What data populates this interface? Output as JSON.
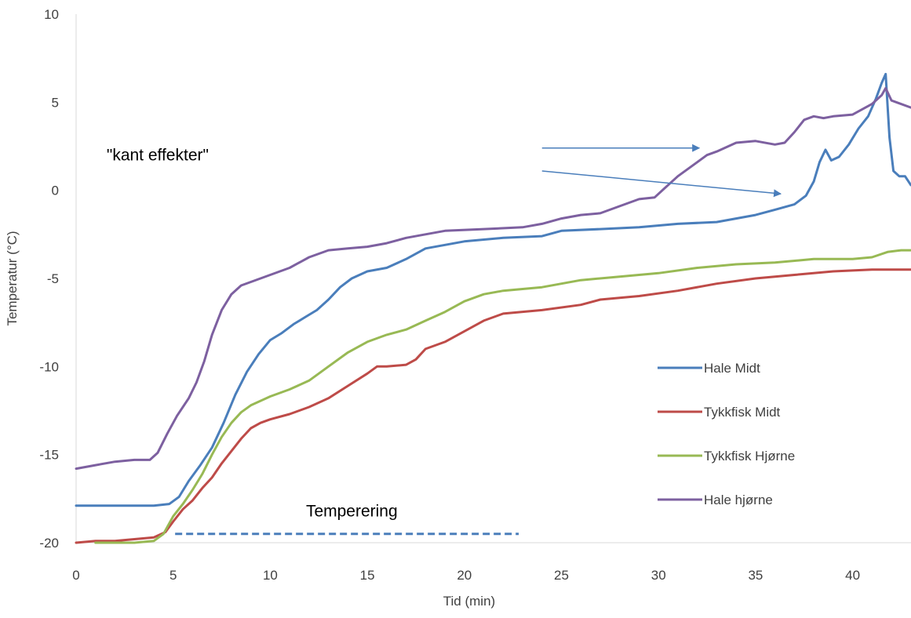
{
  "chart_data": {
    "type": "line",
    "title": "",
    "xlabel": "Tid (min)",
    "ylabel": "Temperatur (°C)",
    "xlim": [
      0,
      43
    ],
    "ylim": [
      -20,
      10
    ],
    "x_ticks": [
      0,
      5,
      10,
      15,
      20,
      25,
      30,
      35,
      40
    ],
    "y_ticks": [
      10,
      5,
      0,
      -5,
      -10,
      -15,
      -20
    ],
    "x_tick_labels": [
      "0",
      "5",
      "10",
      "15",
      "20",
      "25",
      "30",
      "35",
      "40"
    ],
    "y_tick_labels": [
      "10",
      "5",
      "0",
      "-5",
      "-10",
      "-15",
      "-20"
    ],
    "grid": false,
    "legend_position": "right",
    "series": [
      {
        "name": "Hale Midt",
        "color": "#4a7ebb",
        "points": [
          [
            0,
            -17.9
          ],
          [
            2,
            -17.9
          ],
          [
            4,
            -17.9
          ],
          [
            4.8,
            -17.8
          ],
          [
            5.3,
            -17.4
          ],
          [
            5.8,
            -16.5
          ],
          [
            6.4,
            -15.6
          ],
          [
            7,
            -14.6
          ],
          [
            7.6,
            -13.2
          ],
          [
            8.2,
            -11.6
          ],
          [
            8.8,
            -10.3
          ],
          [
            9.4,
            -9.3
          ],
          [
            10,
            -8.5
          ],
          [
            10.6,
            -8.1
          ],
          [
            11.2,
            -7.6
          ],
          [
            11.8,
            -7.2
          ],
          [
            12.4,
            -6.8
          ],
          [
            13,
            -6.2
          ],
          [
            13.6,
            -5.5
          ],
          [
            14.2,
            -5.0
          ],
          [
            15,
            -4.6
          ],
          [
            16,
            -4.4
          ],
          [
            17,
            -3.9
          ],
          [
            18,
            -3.3
          ],
          [
            19,
            -3.1
          ],
          [
            20,
            -2.9
          ],
          [
            22,
            -2.7
          ],
          [
            24,
            -2.6
          ],
          [
            25,
            -2.3
          ],
          [
            27,
            -2.2
          ],
          [
            29,
            -2.1
          ],
          [
            31,
            -1.9
          ],
          [
            33,
            -1.8
          ],
          [
            35,
            -1.4
          ],
          [
            36,
            -1.1
          ],
          [
            37,
            -0.8
          ],
          [
            37.6,
            -0.3
          ],
          [
            38,
            0.5
          ],
          [
            38.3,
            1.6
          ],
          [
            38.6,
            2.3
          ],
          [
            38.9,
            1.7
          ],
          [
            39.3,
            1.9
          ],
          [
            39.8,
            2.6
          ],
          [
            40.3,
            3.5
          ],
          [
            40.8,
            4.2
          ],
          [
            41.2,
            5.2
          ],
          [
            41.5,
            6.1
          ],
          [
            41.7,
            6.6
          ],
          [
            41.9,
            3.0
          ],
          [
            42.1,
            1.1
          ],
          [
            42.4,
            0.8
          ],
          [
            42.7,
            0.8
          ],
          [
            43,
            0.3
          ]
        ]
      },
      {
        "name": "Tykkfisk Midt",
        "color": "#be4b48",
        "points": [
          [
            0,
            -20.0
          ],
          [
            1,
            -19.9
          ],
          [
            2,
            -19.9
          ],
          [
            3,
            -19.8
          ],
          [
            4,
            -19.7
          ],
          [
            4.6,
            -19.4
          ],
          [
            5,
            -18.8
          ],
          [
            5.5,
            -18.1
          ],
          [
            6,
            -17.6
          ],
          [
            6.5,
            -16.9
          ],
          [
            7,
            -16.3
          ],
          [
            7.5,
            -15.5
          ],
          [
            8,
            -14.8
          ],
          [
            8.5,
            -14.1
          ],
          [
            9,
            -13.5
          ],
          [
            9.5,
            -13.2
          ],
          [
            10,
            -13.0
          ],
          [
            11,
            -12.7
          ],
          [
            12,
            -12.3
          ],
          [
            13,
            -11.8
          ],
          [
            14,
            -11.1
          ],
          [
            15,
            -10.4
          ],
          [
            15.5,
            -10.0
          ],
          [
            16,
            -10.0
          ],
          [
            17,
            -9.9
          ],
          [
            17.5,
            -9.6
          ],
          [
            18,
            -9.0
          ],
          [
            19,
            -8.6
          ],
          [
            20,
            -8.0
          ],
          [
            21,
            -7.4
          ],
          [
            22,
            -7.0
          ],
          [
            24,
            -6.8
          ],
          [
            26,
            -6.5
          ],
          [
            27,
            -6.2
          ],
          [
            29,
            -6.0
          ],
          [
            31,
            -5.7
          ],
          [
            33,
            -5.3
          ],
          [
            35,
            -5.0
          ],
          [
            37,
            -4.8
          ],
          [
            39,
            -4.6
          ],
          [
            41,
            -4.5
          ],
          [
            43,
            -4.5
          ]
        ]
      },
      {
        "name": "Tykkfisk Hjørne",
        "color": "#98b954",
        "points": [
          [
            1,
            -20.0
          ],
          [
            3,
            -20.0
          ],
          [
            4,
            -19.9
          ],
          [
            4.5,
            -19.5
          ],
          [
            5,
            -18.5
          ],
          [
            5.5,
            -17.8
          ],
          [
            6,
            -17.0
          ],
          [
            6.5,
            -16.1
          ],
          [
            7,
            -15.0
          ],
          [
            7.5,
            -14.0
          ],
          [
            8,
            -13.2
          ],
          [
            8.5,
            -12.6
          ],
          [
            9,
            -12.2
          ],
          [
            10,
            -11.7
          ],
          [
            11,
            -11.3
          ],
          [
            12,
            -10.8
          ],
          [
            13,
            -10.0
          ],
          [
            14,
            -9.2
          ],
          [
            15,
            -8.6
          ],
          [
            16,
            -8.2
          ],
          [
            17,
            -7.9
          ],
          [
            18,
            -7.4
          ],
          [
            19,
            -6.9
          ],
          [
            20,
            -6.3
          ],
          [
            21,
            -5.9
          ],
          [
            22,
            -5.7
          ],
          [
            24,
            -5.5
          ],
          [
            26,
            -5.1
          ],
          [
            28,
            -4.9
          ],
          [
            30,
            -4.7
          ],
          [
            32,
            -4.4
          ],
          [
            34,
            -4.2
          ],
          [
            36,
            -4.1
          ],
          [
            38,
            -3.9
          ],
          [
            40,
            -3.9
          ],
          [
            41,
            -3.8
          ],
          [
            41.8,
            -3.5
          ],
          [
            42.5,
            -3.4
          ],
          [
            43,
            -3.4
          ]
        ]
      },
      {
        "name": "Hale hjørne",
        "color": "#7d60a0",
        "points": [
          [
            0,
            -15.8
          ],
          [
            1,
            -15.6
          ],
          [
            2,
            -15.4
          ],
          [
            3,
            -15.3
          ],
          [
            3.8,
            -15.3
          ],
          [
            4.2,
            -14.9
          ],
          [
            4.7,
            -13.8
          ],
          [
            5.2,
            -12.8
          ],
          [
            5.8,
            -11.8
          ],
          [
            6.2,
            -10.9
          ],
          [
            6.6,
            -9.7
          ],
          [
            7,
            -8.2
          ],
          [
            7.5,
            -6.8
          ],
          [
            8,
            -5.9
          ],
          [
            8.5,
            -5.4
          ],
          [
            9,
            -5.2
          ],
          [
            10,
            -4.8
          ],
          [
            11,
            -4.4
          ],
          [
            12,
            -3.8
          ],
          [
            13,
            -3.4
          ],
          [
            14,
            -3.3
          ],
          [
            15,
            -3.2
          ],
          [
            16,
            -3.0
          ],
          [
            17,
            -2.7
          ],
          [
            18,
            -2.5
          ],
          [
            19,
            -2.3
          ],
          [
            21,
            -2.2
          ],
          [
            23,
            -2.1
          ],
          [
            24,
            -1.9
          ],
          [
            25,
            -1.6
          ],
          [
            26,
            -1.4
          ],
          [
            27,
            -1.3
          ],
          [
            28,
            -0.9
          ],
          [
            29,
            -0.5
          ],
          [
            29.8,
            -0.4
          ],
          [
            30.3,
            0.1
          ],
          [
            31,
            0.8
          ],
          [
            32,
            1.6
          ],
          [
            32.5,
            2.0
          ],
          [
            33,
            2.2
          ],
          [
            34,
            2.7
          ],
          [
            35,
            2.8
          ],
          [
            36,
            2.6
          ],
          [
            36.5,
            2.7
          ],
          [
            37,
            3.3
          ],
          [
            37.5,
            4.0
          ],
          [
            38,
            4.2
          ],
          [
            38.5,
            4.1
          ],
          [
            39,
            4.2
          ],
          [
            40,
            4.3
          ],
          [
            41,
            4.9
          ],
          [
            41.5,
            5.4
          ],
          [
            41.7,
            5.8
          ],
          [
            42,
            5.1
          ],
          [
            43,
            4.7
          ]
        ]
      }
    ],
    "annotations": [
      {
        "text": "\"kant effekter\"",
        "label_pos": [
          4.2,
          1.7
        ],
        "arrows": [
          {
            "from": [
              24,
              2.4
            ],
            "to": [
              32.1,
              2.4
            ]
          },
          {
            "from": [
              24,
              1.1
            ],
            "to": [
              36.3,
              -0.2
            ]
          }
        ]
      },
      {
        "text": "Temperering",
        "label_pos": [
          14.2,
          -18.5
        ],
        "line": {
          "from": [
            5.1,
            -19.5
          ],
          "to": [
            22.8,
            -19.5
          ],
          "dashed": true,
          "color": "#4a7ebb"
        }
      }
    ]
  }
}
